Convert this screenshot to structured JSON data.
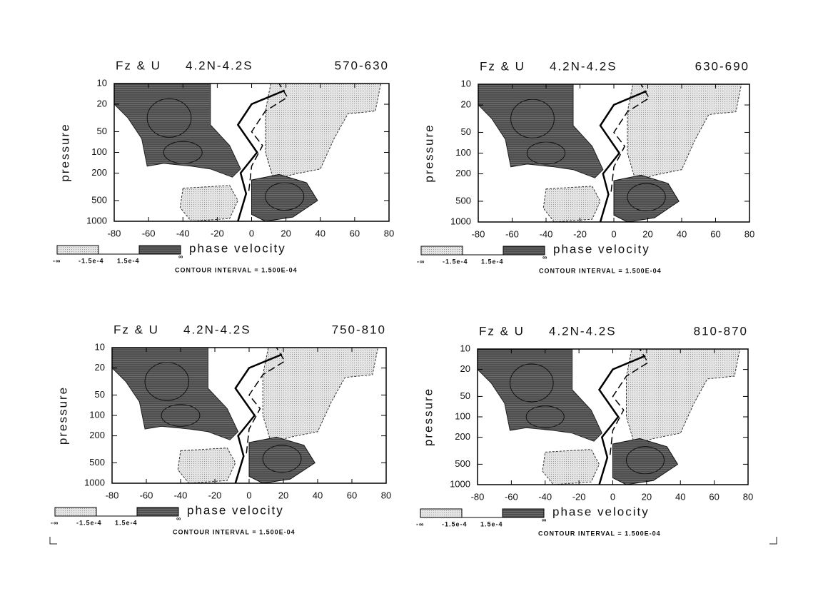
{
  "chart_data": [
    {
      "type": "contour",
      "title": "Fz & U",
      "subtitle": "4.2N-4.2S",
      "period": "570-630",
      "xlabel": "phase velocity",
      "ylabel": "pressure",
      "xlim": [
        -80,
        80
      ],
      "xticks": [
        -80,
        -60,
        -40,
        -20,
        0,
        20,
        40,
        60,
        80
      ],
      "ylim": [
        1000,
        10
      ],
      "yticks": [
        10,
        20,
        50,
        100,
        200,
        500,
        1000
      ],
      "log_y": true,
      "legend_labels": [
        "-∞",
        "-1.5e-4",
        "1.5e-4",
        "∞"
      ],
      "note": "CONTOUR INTERVAL = 1.500E-04"
    },
    {
      "type": "contour",
      "title": "Fz & U",
      "subtitle": "4.2N-4.2S",
      "period": "630-690",
      "xlabel": "phase velocity",
      "ylabel": "pressure",
      "xlim": [
        -80,
        80
      ],
      "xticks": [
        -80,
        -60,
        -40,
        -20,
        0,
        20,
        40,
        60,
        80
      ],
      "ylim": [
        1000,
        10
      ],
      "yticks": [
        10,
        20,
        50,
        100,
        200,
        500,
        1000
      ],
      "log_y": true,
      "legend_labels": [
        "-∞",
        "-1.5e-4",
        "1.5e-4",
        "∞"
      ],
      "note": "CONTOUR INTERVAL = 1.500E-04"
    },
    {
      "type": "contour",
      "title": "Fz & U",
      "subtitle": "4.2N-4.2S",
      "period": "750-810",
      "xlabel": "phase velocity",
      "ylabel": "pressure",
      "xlim": [
        -80,
        80
      ],
      "xticks": [
        -80,
        -60,
        -40,
        -20,
        0,
        20,
        40,
        60,
        80
      ],
      "ylim": [
        1000,
        10
      ],
      "yticks": [
        10,
        20,
        50,
        100,
        200,
        500,
        1000
      ],
      "log_y": true,
      "legend_labels": [
        "-∞",
        "-1.5e-4",
        "1.5e-4",
        "∞"
      ],
      "note": "CONTOUR INTERVAL = 1.500E-04"
    },
    {
      "type": "contour",
      "title": "Fz & U",
      "subtitle": "4.2N-4.2S",
      "period": "810-870",
      "xlabel": "phase velocity",
      "ylabel": "pressure",
      "xlim": [
        -80,
        80
      ],
      "xticks": [
        -80,
        -60,
        -40,
        -20,
        0,
        20,
        40,
        60,
        80
      ],
      "ylim": [
        1000,
        10
      ],
      "yticks": [
        10,
        20,
        50,
        100,
        200,
        500,
        1000
      ],
      "log_y": true,
      "legend_labels": [
        "-∞",
        "-1.5e-4",
        "1.5e-4",
        "∞"
      ],
      "note": "CONTOUR INTERVAL = 1.500E-04"
    }
  ]
}
